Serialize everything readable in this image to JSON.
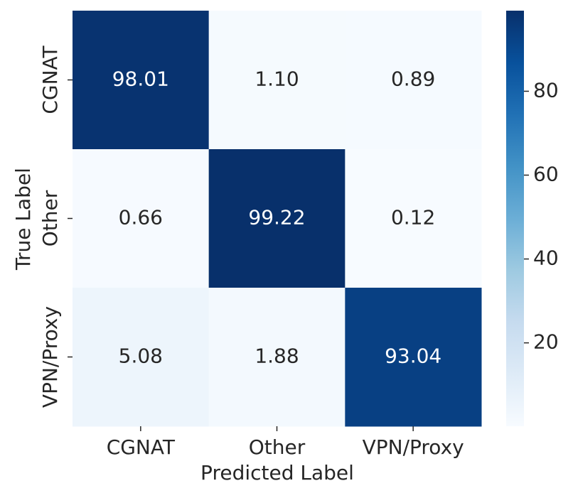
{
  "chart_data": {
    "type": "heatmap",
    "xlabel": "Predicted Label",
    "ylabel": "True Label",
    "x_categories": [
      "CGNAT",
      "Other",
      "VPN/Proxy"
    ],
    "y_categories": [
      "CGNAT",
      "Other",
      "VPN/Proxy"
    ],
    "values": [
      [
        98.01,
        1.1,
        0.89
      ],
      [
        0.66,
        99.22,
        0.12
      ],
      [
        5.08,
        1.88,
        93.04
      ]
    ],
    "value_labels": [
      [
        "98.01",
        "1.10",
        "0.89"
      ],
      [
        "0.66",
        "99.22",
        "0.12"
      ],
      [
        "5.08",
        "1.88",
        "93.04"
      ]
    ],
    "colormap": "Blues",
    "clim": [
      0.12,
      99.22
    ],
    "cticks": [
      20,
      40,
      60,
      80
    ]
  }
}
